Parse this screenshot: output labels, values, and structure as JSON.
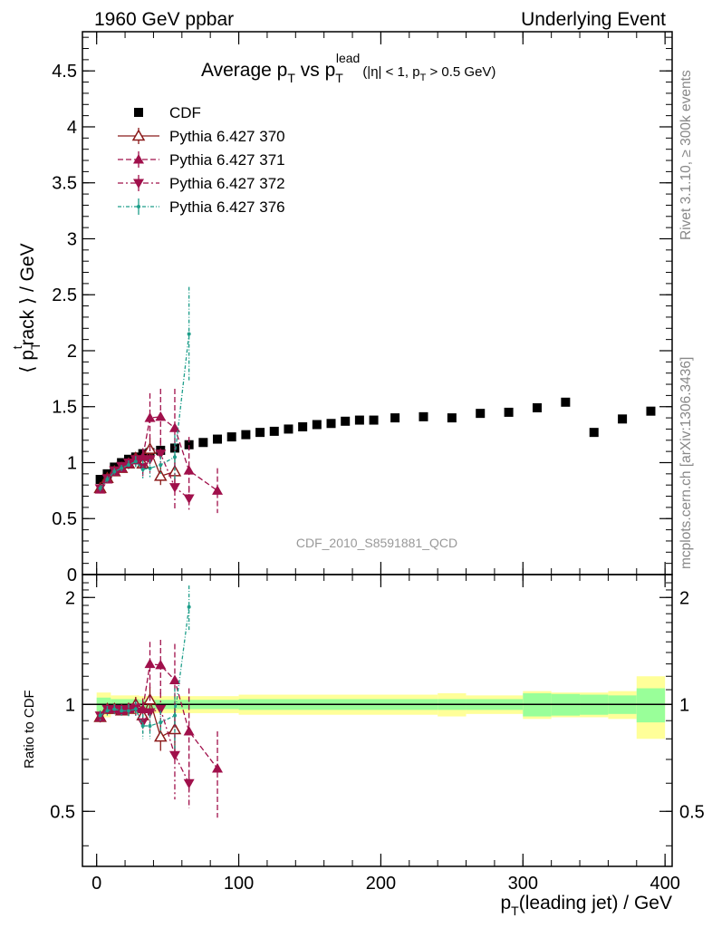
{
  "header": {
    "left": "1960 GeV ppbar",
    "right": "Underlying Event"
  },
  "side_labels": {
    "rivet": "Rivet 3.1.10, ≥ 300k events",
    "mcplots": "mcplots.cern.ch [arXiv:1306.3436]"
  },
  "colors": {
    "cdf": "#000000",
    "p370": "#8b1a1a",
    "p371": "#a0104b",
    "p372": "#a0104b",
    "p376": "#1e9e8a",
    "band_inner": "#99ff99",
    "band_outer": "#ffff99"
  },
  "chart_data": [
    {
      "type": "scatter",
      "title": {
        "main": "Average p",
        "main_sub": "T",
        "vs": " vs p",
        "vs_sup": "lead",
        "vs_sub": "T",
        "cut_a": "(|η| < 1, p",
        "cut_sub": "T",
        "cut_b": " > 0.5 GeV)"
      },
      "ylabel": {
        "open": "⟨ p",
        "sup": "t",
        "sub": "T",
        "rest": "rack ⟩ / GeV"
      },
      "xlim": [
        -10,
        405
      ],
      "ylim": [
        0,
        4.85
      ],
      "y_ticks": [
        0,
        0.5,
        1,
        1.5,
        2,
        2.5,
        3,
        3.5,
        4,
        4.5
      ],
      "y_tick_labels": [
        "0",
        "0.5",
        "1",
        "1.5",
        "2",
        "2.5",
        "3",
        "3.5",
        "4",
        "4.5"
      ],
      "watermark": "CDF_2010_S8591881_QCD",
      "legend_position": "top-left",
      "series": [
        {
          "name": "CDF",
          "key": "cdf",
          "marker": "square",
          "x": [
            2.5,
            7.5,
            12.5,
            17.5,
            22.5,
            27.5,
            32.5,
            37.5,
            45,
            55,
            65,
            75,
            85,
            95,
            105,
            115,
            125,
            135,
            145,
            155,
            165,
            175,
            185,
            195,
            210,
            230,
            250,
            270,
            290,
            310,
            330,
            350,
            370,
            390
          ],
          "y": [
            0.85,
            0.9,
            0.96,
            1.0,
            1.03,
            1.05,
            1.08,
            1.09,
            1.11,
            1.13,
            1.16,
            1.18,
            1.21,
            1.23,
            1.25,
            1.27,
            1.28,
            1.3,
            1.32,
            1.34,
            1.35,
            1.37,
            1.38,
            1.38,
            1.4,
            1.41,
            1.4,
            1.44,
            1.45,
            1.49,
            1.54,
            1.27,
            1.39,
            1.46
          ]
        },
        {
          "name": "Pythia 6.427 370",
          "key": "p370",
          "marker": "open-triangle-up",
          "dash": "",
          "x": [
            2.5,
            7.5,
            12.5,
            17.5,
            22.5,
            27.5,
            32.5,
            37.5,
            45,
            55
          ],
          "y": [
            0.77,
            0.86,
            0.92,
            0.95,
            0.99,
            1.04,
            0.99,
            1.12,
            0.88,
            0.92
          ],
          "err": [
            0.03,
            0.03,
            0.03,
            0.03,
            0.04,
            0.05,
            0.08,
            0.1,
            0.08,
            0.15
          ]
        },
        {
          "name": "Pythia 6.427 371",
          "key": "p371",
          "marker": "triangle-up",
          "dash": "6 3",
          "x": [
            2.5,
            7.5,
            12.5,
            17.5,
            22.5,
            27.5,
            32.5,
            37.5,
            45,
            55,
            65,
            85
          ],
          "y": [
            0.76,
            0.85,
            0.92,
            0.95,
            0.99,
            1.02,
            1.05,
            1.4,
            1.41,
            1.31,
            0.93,
            0.75
          ],
          "err": [
            0.03,
            0.03,
            0.03,
            0.03,
            0.04,
            0.05,
            0.08,
            0.22,
            0.25,
            0.35,
            0.3,
            0.2
          ]
        },
        {
          "name": "Pythia 6.427 372",
          "key": "p372",
          "marker": "triangle-down",
          "dash": "6 3 2 3",
          "x": [
            2.5,
            7.5,
            12.5,
            17.5,
            22.5,
            27.5,
            32.5,
            37.5,
            45,
            55,
            65
          ],
          "y": [
            0.77,
            0.86,
            0.93,
            0.97,
            1.0,
            1.03,
            0.96,
            1.03,
            1.08,
            0.78,
            0.68
          ],
          "err": [
            0.03,
            0.03,
            0.03,
            0.03,
            0.04,
            0.05,
            0.08,
            0.12,
            0.12,
            0.2,
            0.1
          ]
        },
        {
          "name": "Pythia 6.427 376",
          "key": "p376",
          "marker": "dot",
          "dash": "4 2 1 2",
          "x": [
            2.5,
            7.5,
            12.5,
            17.5,
            22.5,
            27.5,
            32.5,
            37.5,
            45,
            55,
            65
          ],
          "y": [
            0.77,
            0.85,
            0.92,
            0.95,
            0.98,
            1.01,
            0.94,
            0.95,
            0.98,
            1.05,
            2.15
          ],
          "err": [
            0.03,
            0.03,
            0.03,
            0.03,
            0.04,
            0.05,
            0.08,
            0.08,
            0.08,
            0.2,
            0.42
          ]
        }
      ]
    },
    {
      "type": "line",
      "ylabel": "Ratio to CDF",
      "xlabel": {
        "main": "p",
        "sub": "T",
        "rest": "(leading jet) / GeV"
      },
      "xlim": [
        -10,
        405
      ],
      "ylim": [
        0.35,
        2.32
      ],
      "y_ticks": [
        0.5,
        1,
        2
      ],
      "y_tick_labels": [
        "0.5",
        "1",
        "2"
      ],
      "x_ticks": [
        0,
        100,
        200,
        300,
        400
      ],
      "x_tick_labels": [
        "0",
        "100",
        "200",
        "300",
        "400"
      ],
      "band_bins": [
        {
          "x0": 0,
          "x1": 10,
          "inner": 0.045,
          "outer": 0.08
        },
        {
          "x0": 10,
          "x1": 30,
          "inner": 0.035,
          "outer": 0.06
        },
        {
          "x0": 30,
          "x1": 100,
          "inner": 0.03,
          "outer": 0.055
        },
        {
          "x0": 100,
          "x1": 240,
          "inner": 0.035,
          "outer": 0.065
        },
        {
          "x0": 240,
          "x1": 260,
          "inner": 0.035,
          "outer": 0.075
        },
        {
          "x0": 260,
          "x1": 300,
          "inner": 0.035,
          "outer": 0.06
        },
        {
          "x0": 300,
          "x1": 320,
          "inner": 0.075,
          "outer": 0.09
        },
        {
          "x0": 320,
          "x1": 340,
          "inner": 0.07,
          "outer": 0.08
        },
        {
          "x0": 340,
          "x1": 360,
          "inner": 0.065,
          "outer": 0.08
        },
        {
          "x0": 360,
          "x1": 380,
          "inner": 0.06,
          "outer": 0.09
        },
        {
          "x0": 380,
          "x1": 400,
          "inner": 0.11,
          "outer": 0.2
        }
      ],
      "series": [
        {
          "name": "Pythia 6.427 370",
          "key": "p370",
          "marker": "open-triangle-up",
          "dash": "",
          "x": [
            2.5,
            7.5,
            12.5,
            17.5,
            22.5,
            27.5,
            32.5,
            37.5,
            45,
            55
          ],
          "y": [
            0.92,
            0.97,
            0.97,
            0.96,
            0.97,
            1.0,
            0.93,
            1.03,
            0.81,
            0.85
          ],
          "err": [
            0.03,
            0.03,
            0.03,
            0.03,
            0.04,
            0.05,
            0.07,
            0.09,
            0.07,
            0.13
          ]
        },
        {
          "name": "Pythia 6.427 371",
          "key": "p371",
          "marker": "triangle-up",
          "dash": "6 3",
          "x": [
            2.5,
            7.5,
            12.5,
            17.5,
            22.5,
            27.5,
            32.5,
            37.5,
            45,
            55,
            65,
            85
          ],
          "y": [
            0.92,
            0.97,
            0.97,
            0.96,
            0.97,
            0.98,
            0.97,
            1.3,
            1.29,
            1.17,
            0.84,
            0.66
          ],
          "err": [
            0.03,
            0.03,
            0.03,
            0.03,
            0.04,
            0.05,
            0.07,
            0.2,
            0.23,
            0.31,
            0.27,
            0.18
          ]
        },
        {
          "name": "Pythia 6.427 372",
          "key": "p372",
          "marker": "triangle-down",
          "dash": "6 3 2 3",
          "x": [
            2.5,
            7.5,
            12.5,
            17.5,
            22.5,
            27.5,
            32.5,
            37.5,
            45,
            55,
            65
          ],
          "y": [
            0.93,
            0.97,
            0.97,
            0.97,
            0.97,
            0.98,
            0.89,
            0.95,
            0.97,
            0.72,
            0.6
          ],
          "err": [
            0.03,
            0.03,
            0.03,
            0.03,
            0.04,
            0.05,
            0.07,
            0.11,
            0.11,
            0.18,
            0.09
          ]
        },
        {
          "name": "Pythia 6.427 376",
          "key": "p376",
          "marker": "dot",
          "dash": "4 2 1 2",
          "x": [
            2.5,
            7.5,
            12.5,
            17.5,
            22.5,
            27.5,
            32.5,
            37.5,
            45,
            55,
            65
          ],
          "y": [
            0.93,
            0.96,
            0.97,
            0.96,
            0.96,
            0.97,
            0.87,
            0.87,
            0.89,
            0.93,
            1.88
          ],
          "err": [
            0.03,
            0.03,
            0.03,
            0.03,
            0.04,
            0.05,
            0.07,
            0.07,
            0.07,
            0.18,
            0.28
          ]
        }
      ]
    }
  ]
}
